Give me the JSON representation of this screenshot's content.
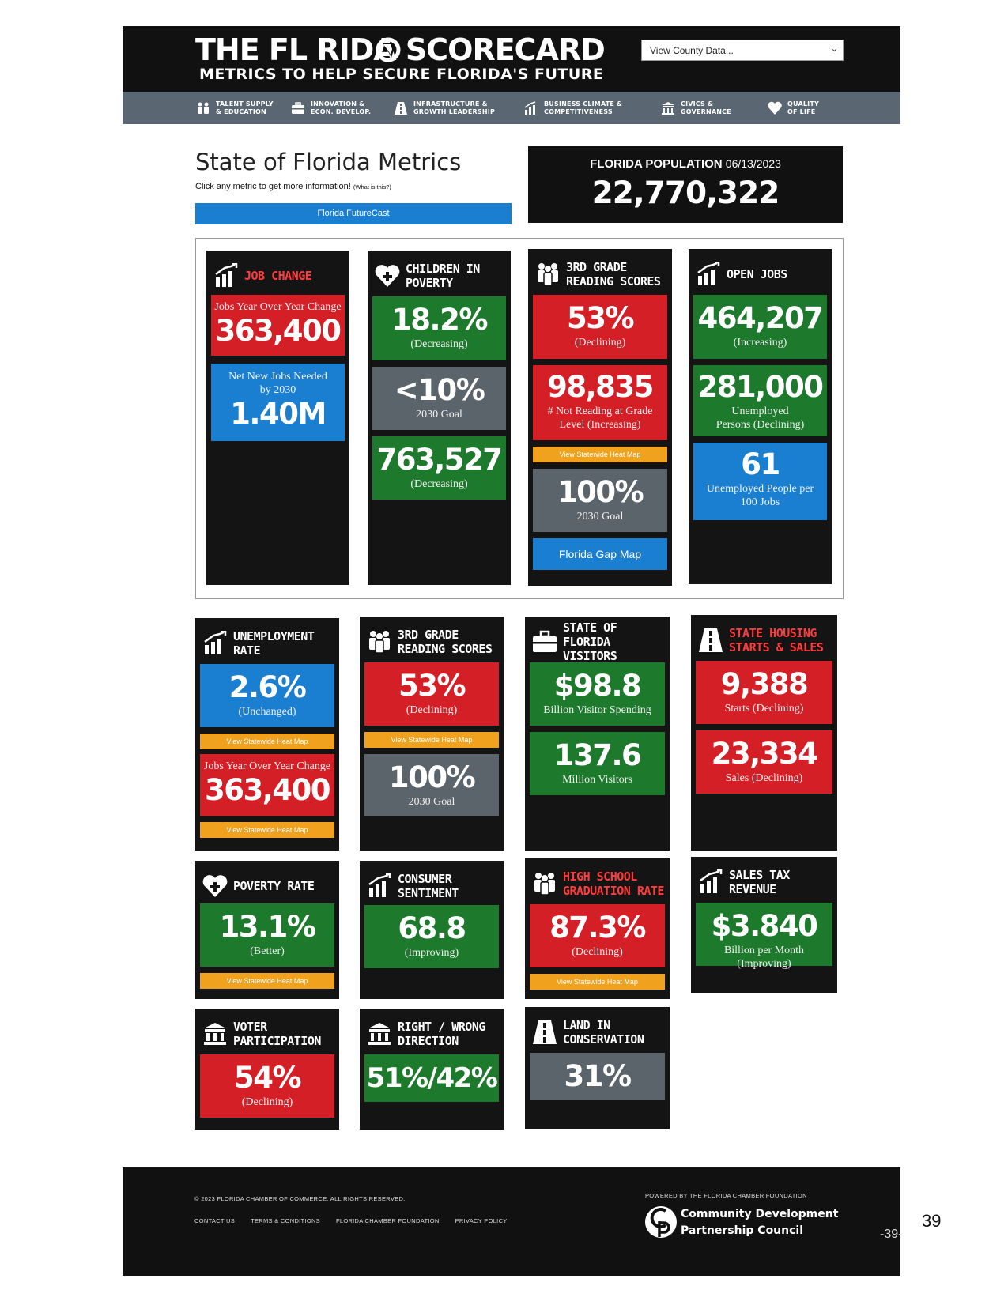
{
  "header": {
    "title": "THE FL  RIDA SCORECARD",
    "subtitle": "METRICS TO HELP SECURE FLORIDA'S FUTURE",
    "county_select": "View County Data..."
  },
  "nav": [
    {
      "label": "TALENT SUPPLY\n& EDUCATION",
      "icon": "people-icon"
    },
    {
      "label": "INNOVATION &\nECON. DEVELOP.",
      "icon": "briefcase-icon"
    },
    {
      "label": "INFRASTRUCTURE &\nGROWTH LEADERSHIP",
      "icon": "road-icon"
    },
    {
      "label": "BUSINESS CLIMATE &\nCOMPETITIVENESS",
      "icon": "chart-icon"
    },
    {
      "label": "CIVICS &\nGOVERNANCE",
      "icon": "building-icon"
    },
    {
      "label": "QUALITY\nOF LIFE",
      "icon": "heart-icon"
    }
  ],
  "intro": {
    "title": "State of Florida Metrics",
    "hint": "Click any metric to get more information!",
    "hint_link": "(What is this?)",
    "futurecast": "Florida FutureCast"
  },
  "population": {
    "label": "FLORIDA POPULATION",
    "date": "06/13/2023",
    "value": "22,770,322"
  },
  "cards": {
    "job_change": {
      "title": "JOB CHANGE",
      "tile1_pre": "Jobs Year Over Year Change",
      "tile1_big": "363,400",
      "tile2_pre": "Net New Jobs Needed by 2030",
      "tile2_big": "1.40M"
    },
    "children_poverty": {
      "title": "CHILDREN IN POVERTY",
      "tile1_big": "18.2%",
      "tile1_sub": "(Decreasing)",
      "tile2_big": "<10%",
      "tile2_sub": "2030 Goal",
      "tile3_big": "763,527",
      "tile3_sub": "(Decreasing)"
    },
    "reading_top": {
      "title": "3RD GRADE READING SCORES",
      "tile1_big": "53%",
      "tile1_sub": "(Declining)",
      "tile2_big": "98,835",
      "tile2_sub": "# Not Reading at Grade Level (Increasing)",
      "heatmap": "View Statewide Heat Map",
      "tile3_big": "100%",
      "tile3_sub": "2030 Goal",
      "gap_map": "Florida Gap Map"
    },
    "open_jobs": {
      "title": "OPEN JOBS",
      "tile1_big": "464,207",
      "tile1_sub": "(Increasing)",
      "tile2_big": "281,000",
      "tile2_sub": "Unemployed Persons (Declining)",
      "tile3_big": "61",
      "tile3_sub": "Unemployed People per 100 Jobs"
    },
    "unemployment": {
      "title": "UNEMPLOYMENT RATE",
      "tile1_big": "2.6%",
      "tile1_sub": "(Unchanged)",
      "heatmap1": "View Statewide Heat Map",
      "tile2_pre": "Jobs Year Over Year Change",
      "tile2_big": "363,400",
      "heatmap2": "View Statewide Heat Map"
    },
    "reading_mid": {
      "title": "3RD GRADE READING SCORES",
      "tile1_big": "53%",
      "tile1_sub": "(Declining)",
      "heatmap": "View Statewide Heat Map",
      "tile2_big": "100%",
      "tile2_sub": "2030 Goal"
    },
    "visitors": {
      "title": "STATE OF FLORIDA VISITORS",
      "tile1_big": "$98.8",
      "tile1_sub": "Billion Visitor Spending",
      "tile2_big": "137.6",
      "tile2_sub": "Million Visitors"
    },
    "housing": {
      "title": "STATE HOUSING STARTS & SALES",
      "tile1_big": "9,388",
      "tile1_sub": "Starts (Declining)",
      "tile2_big": "23,334",
      "tile2_sub": "Sales (Declining)"
    },
    "poverty": {
      "title": "POVERTY RATE",
      "tile1_big": "13.1%",
      "tile1_sub": "(Better)",
      "heatmap": "View Statewide Heat Map"
    },
    "consumer": {
      "title": "CONSUMER SENTIMENT",
      "tile1_big": "68.8",
      "tile1_sub": "(Improving)"
    },
    "graduation": {
      "title": "HIGH SCHOOL GRADUATION RATE",
      "tile1_big": "87.3%",
      "tile1_sub": "(Declining)",
      "heatmap": "View Statewide Heat Map"
    },
    "sales_tax": {
      "title": "SALES TAX REVENUE",
      "tile1_big": "$3.840",
      "tile1_sub": "Billion per Month (Improving)"
    },
    "voter": {
      "title": "VOTER PARTICIPATION",
      "tile1_big": "54%",
      "tile1_sub": "(Declining)"
    },
    "direction": {
      "title": "RIGHT / WRONG DIRECTION",
      "tile1_big": "51%/42%"
    },
    "conservation": {
      "title": "LAND IN CONSERVATION",
      "tile1_big": "31%"
    }
  },
  "footer": {
    "copyright": "© 2023 FLORIDA CHAMBER OF COMMERCE. ALL RIGHTS RESERVED.",
    "links": [
      "CONTACT US",
      "TERMS & CONDITIONS",
      "FLORIDA CHAMBER FOUNDATION",
      "PRIVACY POLICY"
    ],
    "powered_by": "POWERED BY THE FLORIDA CHAMBER FOUNDATION",
    "partner_line1": "Community Development",
    "partner_line2": "Partnership Council",
    "page_mark": "-39-"
  },
  "page_number": "39",
  "colors": {
    "red": "#d41f26",
    "green": "#1d7a2c",
    "gray": "#5b636b",
    "blue": "#1a7fd1",
    "orange": "#f0a21e",
    "dark": "#141414"
  }
}
